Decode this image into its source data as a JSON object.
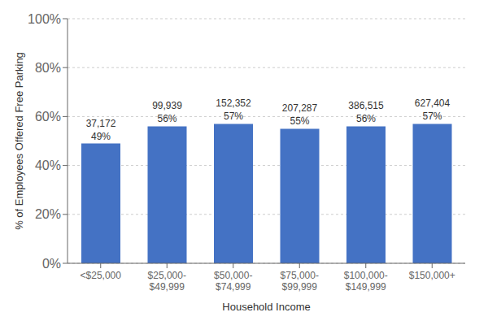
{
  "chart_data": {
    "type": "bar",
    "categories": [
      "<$25,000",
      "$25,000-\n$49,999",
      "$50,000-\n$74,999",
      "$75,000-\n$99,999",
      "$100,000-\n$149,999",
      "$150,000+"
    ],
    "values": [
      49,
      56,
      57,
      55,
      56,
      57
    ],
    "value_labels": [
      "49%",
      "56%",
      "57%",
      "55%",
      "56%",
      "57%"
    ],
    "counts": [
      "37,172",
      "99,939",
      "152,352",
      "207,287",
      "386,515",
      "627,404"
    ],
    "color": "#4472C4",
    "xlabel": "Household Income",
    "ylabel": "% of Employees Offered Free Parking",
    "ylim": [
      0,
      100
    ],
    "yticks": [
      {
        "value": 0,
        "label": "0%"
      },
      {
        "value": 20,
        "label": "20%"
      },
      {
        "value": 40,
        "label": "40%"
      },
      {
        "value": 60,
        "label": "60%"
      },
      {
        "value": 80,
        "label": "80%"
      },
      {
        "value": 100,
        "label": "100%"
      }
    ],
    "grid": true,
    "data_labels": true
  }
}
